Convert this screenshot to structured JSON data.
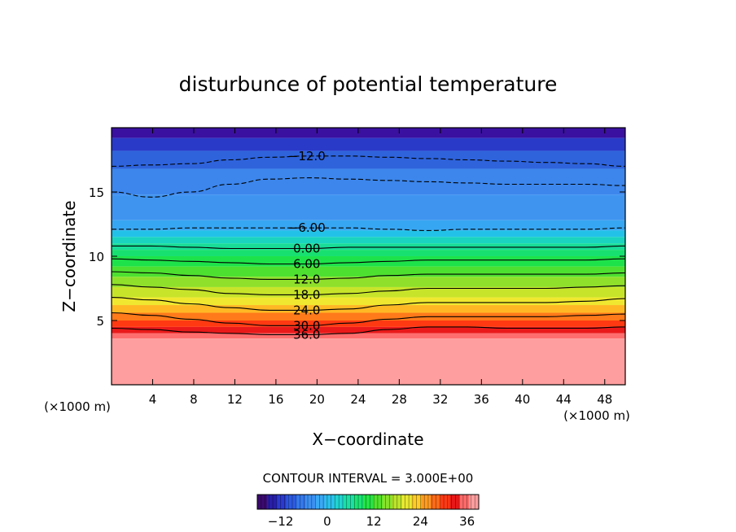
{
  "chart_data": {
    "type": "heatmap",
    "title": "disturbunce of potential temperature",
    "xlabel": "X−coordinate",
    "ylabel": "Z−coordinate",
    "x_unit_left": "(×1000 m)",
    "x_unit_right": "(×1000 m)",
    "xlim": [
      0,
      50
    ],
    "ylim": [
      0,
      20
    ],
    "x_ticks": [
      4,
      8,
      12,
      16,
      20,
      24,
      28,
      32,
      36,
      40,
      44,
      48
    ],
    "y_ticks": [
      5,
      10,
      15
    ],
    "contour_interval_text": "CONTOUR INTERVAL = 3.000E+00",
    "contours": [
      {
        "value": -12,
        "label": "−12.0",
        "z": [
          17.0,
          17.1,
          17.2,
          17.5,
          17.7,
          17.8,
          17.8,
          17.7,
          17.6,
          17.5,
          17.4,
          17.3,
          17.2,
          17.0
        ]
      },
      {
        "value": -9,
        "label": "",
        "z": [
          15.0,
          14.6,
          15.0,
          15.6,
          16.0,
          16.1,
          16.0,
          15.9,
          15.8,
          15.7,
          15.6,
          15.6,
          15.6,
          15.5
        ]
      },
      {
        "value": -6,
        "label": "−6.00",
        "z": [
          12.1,
          12.1,
          12.2,
          12.2,
          12.2,
          12.2,
          12.2,
          12.1,
          12.0,
          12.1,
          12.1,
          12.1,
          12.1,
          12.2
        ]
      },
      {
        "value": 0,
        "label": "0.00",
        "z": [
          10.8,
          10.8,
          10.7,
          10.6,
          10.6,
          10.6,
          10.7,
          10.7,
          10.7,
          10.7,
          10.7,
          10.7,
          10.7,
          10.8
        ]
      },
      {
        "value": 6,
        "label": "6.00",
        "z": [
          9.8,
          9.7,
          9.6,
          9.5,
          9.4,
          9.4,
          9.5,
          9.6,
          9.7,
          9.7,
          9.7,
          9.7,
          9.7,
          9.8
        ]
      },
      {
        "value": 12,
        "label": "12.0",
        "z": [
          8.8,
          8.7,
          8.5,
          8.3,
          8.2,
          8.2,
          8.3,
          8.5,
          8.6,
          8.6,
          8.6,
          8.6,
          8.6,
          8.7
        ]
      },
      {
        "value": 18,
        "label": "18.0",
        "z": [
          7.8,
          7.6,
          7.4,
          7.1,
          7.0,
          7.0,
          7.1,
          7.3,
          7.5,
          7.5,
          7.5,
          7.5,
          7.6,
          7.7
        ]
      },
      {
        "value": 24,
        "label": "24.0",
        "z": [
          6.8,
          6.6,
          6.3,
          6.0,
          5.8,
          5.8,
          5.9,
          6.2,
          6.4,
          6.4,
          6.4,
          6.4,
          6.5,
          6.7
        ]
      },
      {
        "value": 30,
        "label": "30.0",
        "z": [
          5.6,
          5.4,
          5.1,
          4.8,
          4.6,
          4.6,
          4.8,
          5.1,
          5.3,
          5.3,
          5.3,
          5.3,
          5.4,
          5.5
        ]
      },
      {
        "value": 36,
        "label": "36.0",
        "z": [
          4.4,
          4.3,
          4.1,
          4.0,
          3.9,
          3.9,
          4.0,
          4.3,
          4.5,
          4.5,
          4.4,
          4.4,
          4.4,
          4.5
        ]
      }
    ],
    "bands": [
      {
        "z_bottom": 19.2,
        "color": "#3a10a0"
      },
      {
        "z_bottom": 18.2,
        "color": "#2a3ac8"
      },
      {
        "z_bottom": 16.8,
        "color": "#2e63dc"
      },
      {
        "z_bottom": 14.8,
        "color": "#3c86ec"
      },
      {
        "z_bottom": 12.8,
        "color": "#3f94f0"
      },
      {
        "z_bottom": 12.0,
        "color": "#37a6f2"
      },
      {
        "z_bottom": 11.5,
        "color": "#22c2e8"
      },
      {
        "z_bottom": 11.0,
        "color": "#1ad4c0"
      },
      {
        "z_bottom": 10.5,
        "color": "#18dc98"
      },
      {
        "z_bottom": 10.0,
        "color": "#18e070"
      },
      {
        "z_bottom": 9.2,
        "color": "#1ee24a"
      },
      {
        "z_bottom": 8.4,
        "color": "#4ee030"
      },
      {
        "z_bottom": 7.6,
        "color": "#8fe02a"
      },
      {
        "z_bottom": 6.8,
        "color": "#c8e42a"
      },
      {
        "z_bottom": 6.2,
        "color": "#f0e830"
      },
      {
        "z_bottom": 5.6,
        "color": "#ffb824"
      },
      {
        "z_bottom": 5.0,
        "color": "#ff7a1a"
      },
      {
        "z_bottom": 4.5,
        "color": "#ff3a12"
      },
      {
        "z_bottom": 4.0,
        "color": "#ea1a1a"
      },
      {
        "z_bottom": 3.6,
        "color": "#ff6e6e"
      },
      {
        "z_bottom": 0.0,
        "color": "#ff9e9e"
      }
    ],
    "colorbar": {
      "vmin": -18,
      "vmax": 39,
      "ticks": [
        -12,
        0,
        12,
        24,
        36
      ],
      "tick_labels": [
        "−12",
        "0",
        "12",
        "24",
        "36"
      ],
      "colors": [
        "#3a0a6e",
        "#281ea8",
        "#2a3ad0",
        "#2c5ae0",
        "#3478ec",
        "#3c90f2",
        "#3aa8f4",
        "#2ac0ec",
        "#20d4d0",
        "#1ae0a4",
        "#1ae474",
        "#22e444",
        "#52e22c",
        "#88e22a",
        "#bce42a",
        "#e8e830",
        "#ffcc28",
        "#ff9c20",
        "#ff6a18",
        "#ff3a14",
        "#e81818",
        "#ff6a6a",
        "#ff9e9e"
      ]
    }
  }
}
